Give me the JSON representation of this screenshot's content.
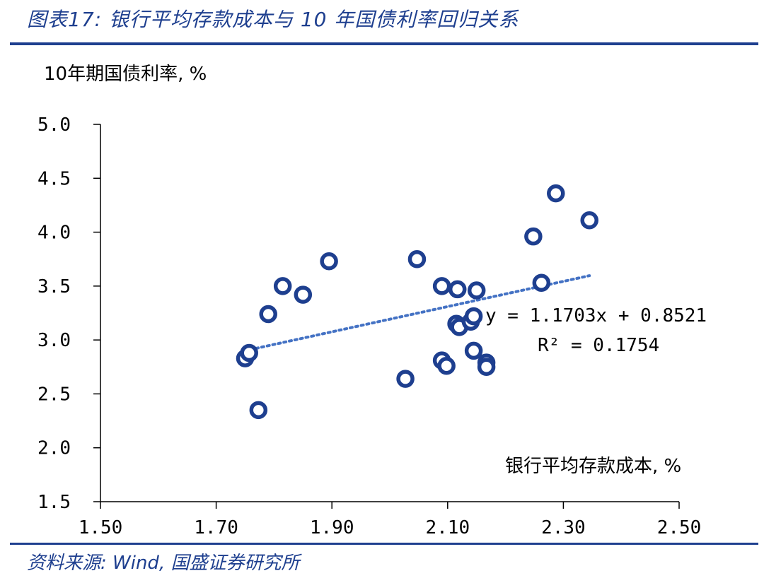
{
  "title": "图表17: 银行平均存款成本与 10 年国债利率回归关系",
  "source": "资料来源: Wind, 国盛证券研究所",
  "chart_data": {
    "type": "scatter",
    "title": "银行平均存款成本与 10 年国债利率回归关系",
    "xlabel": "银行平均存款成本, %",
    "ylabel": "10年期国债利率, %",
    "xlim": [
      1.5,
      2.5
    ],
    "ylim": [
      1.5,
      5.0
    ],
    "xticks": [
      "1.50",
      "1.70",
      "1.90",
      "2.10",
      "2.30",
      "2.50"
    ],
    "yticks": [
      "1.5",
      "2.0",
      "2.5",
      "3.0",
      "3.5",
      "4.0",
      "4.5",
      "5.0"
    ],
    "points": [
      {
        "x": 1.75,
        "y": 2.83
      },
      {
        "x": 1.757,
        "y": 2.88
      },
      {
        "x": 1.773,
        "y": 2.35
      },
      {
        "x": 1.79,
        "y": 3.24
      },
      {
        "x": 1.815,
        "y": 3.5
      },
      {
        "x": 1.85,
        "y": 3.42
      },
      {
        "x": 1.895,
        "y": 3.73
      },
      {
        "x": 2.027,
        "y": 2.64
      },
      {
        "x": 2.047,
        "y": 3.75
      },
      {
        "x": 2.09,
        "y": 3.5
      },
      {
        "x": 2.09,
        "y": 2.81
      },
      {
        "x": 2.098,
        "y": 2.76
      },
      {
        "x": 2.117,
        "y": 3.47
      },
      {
        "x": 2.115,
        "y": 3.15
      },
      {
        "x": 2.12,
        "y": 3.12
      },
      {
        "x": 2.14,
        "y": 3.17
      },
      {
        "x": 2.145,
        "y": 3.22
      },
      {
        "x": 2.145,
        "y": 2.9
      },
      {
        "x": 2.15,
        "y": 3.46
      },
      {
        "x": 2.167,
        "y": 2.79
      },
      {
        "x": 2.167,
        "y": 2.75
      },
      {
        "x": 2.248,
        "y": 3.96
      },
      {
        "x": 2.262,
        "y": 3.53
      },
      {
        "x": 2.287,
        "y": 4.36
      },
      {
        "x": 2.345,
        "y": 4.11
      }
    ],
    "trendline": {
      "slope": 1.1703,
      "intercept": 0.8521,
      "x_range": [
        1.75,
        2.345
      ]
    },
    "equation_label": "y = 1.1703x + 0.8521",
    "r2_label": "R² = 0.1754",
    "colors": {
      "marker": "#1e3f8f",
      "trend": "#4472c4",
      "rule": "#1e3f8f"
    }
  }
}
